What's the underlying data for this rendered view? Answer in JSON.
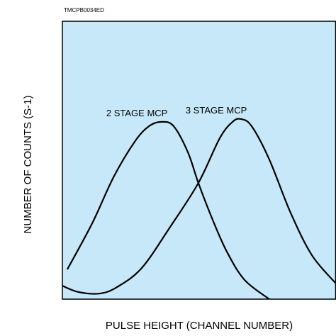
{
  "chart_data": {
    "type": "line",
    "code": "TMCPB0034ED",
    "xlabel": "PULSE HEIGHT (CHANNEL NUMBER)",
    "ylabel": "NUMBER OF COUNTS (S-1)",
    "xlim": [
      0,
      100
    ],
    "ylim": [
      0,
      100
    ],
    "background": "#c6e8f8",
    "series": [
      {
        "name": "2 STAGE MCP",
        "color": "#000000",
        "x": [
          1.8,
          10.9,
          18.7,
          26.4,
          31.6,
          36.3,
          40.7,
          45.9,
          49.7,
          54.9,
          60.1,
          66.6,
          75.6
        ],
        "values": [
          10.7,
          27.3,
          43.9,
          56.6,
          62.2,
          63.8,
          62.2,
          52.8,
          41.8,
          28.6,
          17.1,
          6.9,
          0
        ]
      },
      {
        "name": "3 STAGE MCP",
        "color": "#000000",
        "x": [
          0,
          5.7,
          13.5,
          19.9,
          29,
          39.4,
          49.7,
          57.5,
          62.2,
          65.3,
          69.2,
          75.6,
          83.4,
          91.2,
          100
        ],
        "values": [
          4.8,
          2.6,
          2.0,
          4.3,
          11.2,
          26,
          41.8,
          57.9,
          63.8,
          64.8,
          62.2,
          50.3,
          31.1,
          15.8,
          5.6
        ]
      }
    ]
  }
}
